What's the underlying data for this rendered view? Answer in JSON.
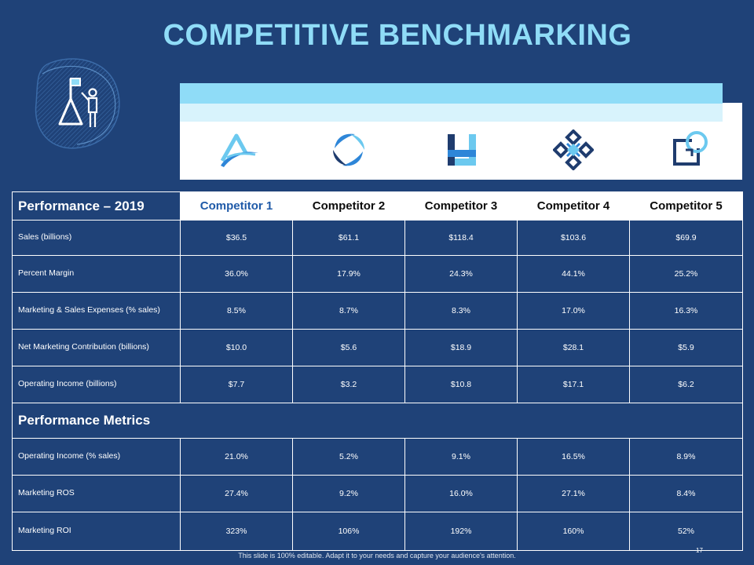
{
  "slide": {
    "title": "COMPETITIVE BENCHMARKING",
    "footer": "This slide is 100% editable. Adapt it to your needs and capture your audience's attention.",
    "page_number": "17"
  },
  "icons": {
    "hero": "person-with-flag-on-mountain-icon",
    "logos": [
      "competitor-1-logo",
      "competitor-2-logo",
      "competitor-3-logo",
      "competitor-4-logo",
      "competitor-5-logo"
    ]
  },
  "colors": {
    "background": "#1f4278",
    "title": "#8fdcf7",
    "band_light": "#8fdcf7",
    "band_pale": "#d8f3fc",
    "competitor_1_header": "#1f5aa8"
  },
  "table": {
    "section1_title": "Performance – 2019",
    "competitors": [
      "Competitor 1",
      "Competitor 2",
      "Competitor 3",
      "Competitor 4",
      "Competitor 5"
    ],
    "rows1": [
      {
        "label": "Sales (billions)",
        "values": [
          "$36.5",
          "$61.1",
          "$118.4",
          "$103.6",
          "$69.9"
        ]
      },
      {
        "label": "Percent Margin",
        "values": [
          "36.0%",
          "17.9%",
          "24.3%",
          "44.1%",
          "25.2%"
        ]
      },
      {
        "label": "Marketing & Sales Expenses (% sales)",
        "values": [
          "8.5%",
          "8.7%",
          "8.3%",
          "17.0%",
          "16.3%"
        ]
      },
      {
        "label": "Net Marketing Contribution (billions)",
        "values": [
          "$10.0",
          "$5.6",
          "$18.9",
          "$28.1",
          "$5.9"
        ]
      },
      {
        "label": "Operating Income (billions)",
        "values": [
          "$7.7",
          "$3.2",
          "$10.8",
          "$17.1",
          "$6.2"
        ]
      }
    ],
    "section2_title": "Performance Metrics",
    "rows2": [
      {
        "label": "Operating Income (% sales)",
        "values": [
          "21.0%",
          "5.2%",
          "9.1%",
          "16.5%",
          "8.9%"
        ]
      },
      {
        "label": "Marketing ROS",
        "values": [
          "27.4%",
          "9.2%",
          "16.0%",
          "27.1%",
          "8.4%"
        ]
      },
      {
        "label": "Marketing ROI",
        "values": [
          "323%",
          "106%",
          "192%",
          "160%",
          "52%"
        ]
      }
    ]
  }
}
